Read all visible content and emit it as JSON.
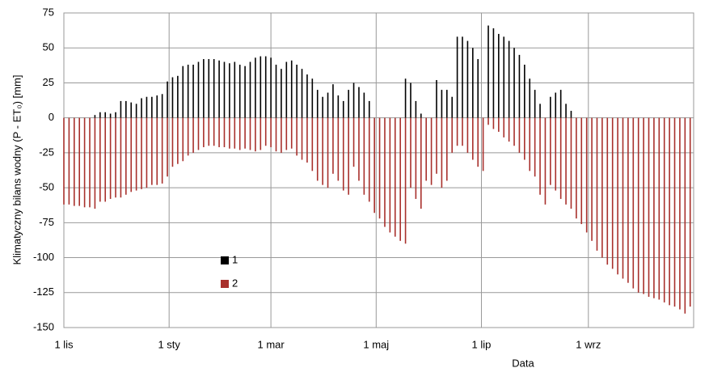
{
  "chart_data": {
    "type": "bar",
    "y_label": "Klimatyczny bilans wodny (P - ET₀) [mm]",
    "x_label": "Data",
    "xlim": [
      0,
      365
    ],
    "xticks": [
      {
        "value": 0,
        "label": "1 lis"
      },
      {
        "value": 61,
        "label": "1 sty"
      },
      {
        "value": 120,
        "label": "1 mar"
      },
      {
        "value": 181,
        "label": "1 maj"
      },
      {
        "value": 242,
        "label": "1 lip"
      },
      {
        "value": 304,
        "label": "1 wrz"
      }
    ],
    "ylim": [
      -150,
      75
    ],
    "yticks": [
      75,
      50,
      25,
      0,
      -25,
      -50,
      -75,
      -100,
      -125,
      -150
    ],
    "grid": true,
    "x": [
      0,
      3,
      6,
      9,
      12,
      15,
      18,
      21,
      24,
      27,
      30,
      33,
      36,
      39,
      42,
      45,
      48,
      51,
      54,
      57,
      60,
      63,
      66,
      69,
      72,
      75,
      78,
      81,
      84,
      87,
      90,
      93,
      96,
      99,
      102,
      105,
      108,
      111,
      114,
      117,
      120,
      123,
      126,
      129,
      132,
      135,
      138,
      141,
      144,
      147,
      150,
      153,
      156,
      159,
      162,
      165,
      168,
      171,
      174,
      177,
      180,
      183,
      186,
      189,
      192,
      195,
      198,
      201,
      204,
      207,
      210,
      213,
      216,
      219,
      222,
      225,
      228,
      231,
      234,
      237,
      240,
      243,
      246,
      249,
      252,
      255,
      258,
      261,
      264,
      267,
      270,
      273,
      276,
      279,
      282,
      285,
      288,
      291,
      294,
      297,
      300,
      303,
      306,
      309,
      312,
      315,
      318,
      321,
      324,
      327,
      330,
      333,
      336,
      339,
      342,
      345,
      348,
      351,
      354,
      357,
      360,
      363
    ],
    "series": [
      {
        "name": "1",
        "color": "#000000",
        "values": [
          0,
          0,
          0,
          0,
          0,
          0,
          2,
          4,
          4,
          3,
          4,
          12,
          12,
          11,
          10,
          14,
          15,
          15,
          16,
          17,
          26,
          29,
          30,
          37,
          38,
          38,
          40,
          42,
          42,
          42,
          41,
          40,
          39,
          40,
          38,
          37,
          40,
          43,
          44,
          44,
          43,
          38,
          35,
          40,
          41,
          38,
          35,
          31,
          28,
          20,
          15,
          18,
          24,
          16,
          12,
          20,
          25,
          22,
          18,
          12,
          0,
          0,
          0,
          0,
          0,
          0,
          28,
          25,
          12,
          3,
          0,
          0,
          27,
          20,
          20,
          15,
          58,
          58,
          55,
          50,
          42,
          0,
          66,
          64,
          60,
          58,
          55,
          50,
          45,
          38,
          28,
          20,
          10,
          0,
          15,
          18,
          20,
          10,
          5,
          0,
          0,
          0,
          0,
          0,
          0,
          0,
          0,
          0,
          0,
          0,
          0,
          0,
          0,
          0,
          0,
          0,
          0,
          0,
          0,
          0,
          0,
          0
        ]
      },
      {
        "name": "2",
        "color": "#a8302c",
        "values": [
          -62,
          -62,
          -63,
          -63,
          -64,
          -64,
          -65,
          -60,
          -60,
          -58,
          -57,
          -57,
          -55,
          -53,
          -52,
          -51,
          -50,
          -48,
          -48,
          -47,
          -42,
          -35,
          -33,
          -31,
          -27,
          -25,
          -23,
          -21,
          -20,
          -20,
          -21,
          -21,
          -22,
          -22,
          -23,
          -22,
          -23,
          -24,
          -23,
          -20,
          -21,
          -24,
          -25,
          -23,
          -22,
          -27,
          -30,
          -32,
          -38,
          -45,
          -48,
          -50,
          -40,
          -45,
          -52,
          -55,
          -35,
          -45,
          -55,
          -60,
          -68,
          -72,
          -78,
          -82,
          -85,
          -88,
          -90,
          -50,
          -58,
          -65,
          -45,
          -48,
          -40,
          -50,
          -45,
          -25,
          -20,
          -20,
          -25,
          -30,
          -35,
          -38,
          -5,
          -8,
          -10,
          -14,
          -17,
          -20,
          -25,
          -30,
          -38,
          -42,
          -55,
          -62,
          -48,
          -52,
          -58,
          -62,
          -65,
          -72,
          -76,
          -82,
          -88,
          -95,
          -100,
          -105,
          -108,
          -112,
          -115,
          -118,
          -122,
          -125,
          -126,
          -128,
          -129,
          -130,
          -132,
          -134,
          -135,
          -137,
          -140,
          -135
        ]
      }
    ]
  }
}
